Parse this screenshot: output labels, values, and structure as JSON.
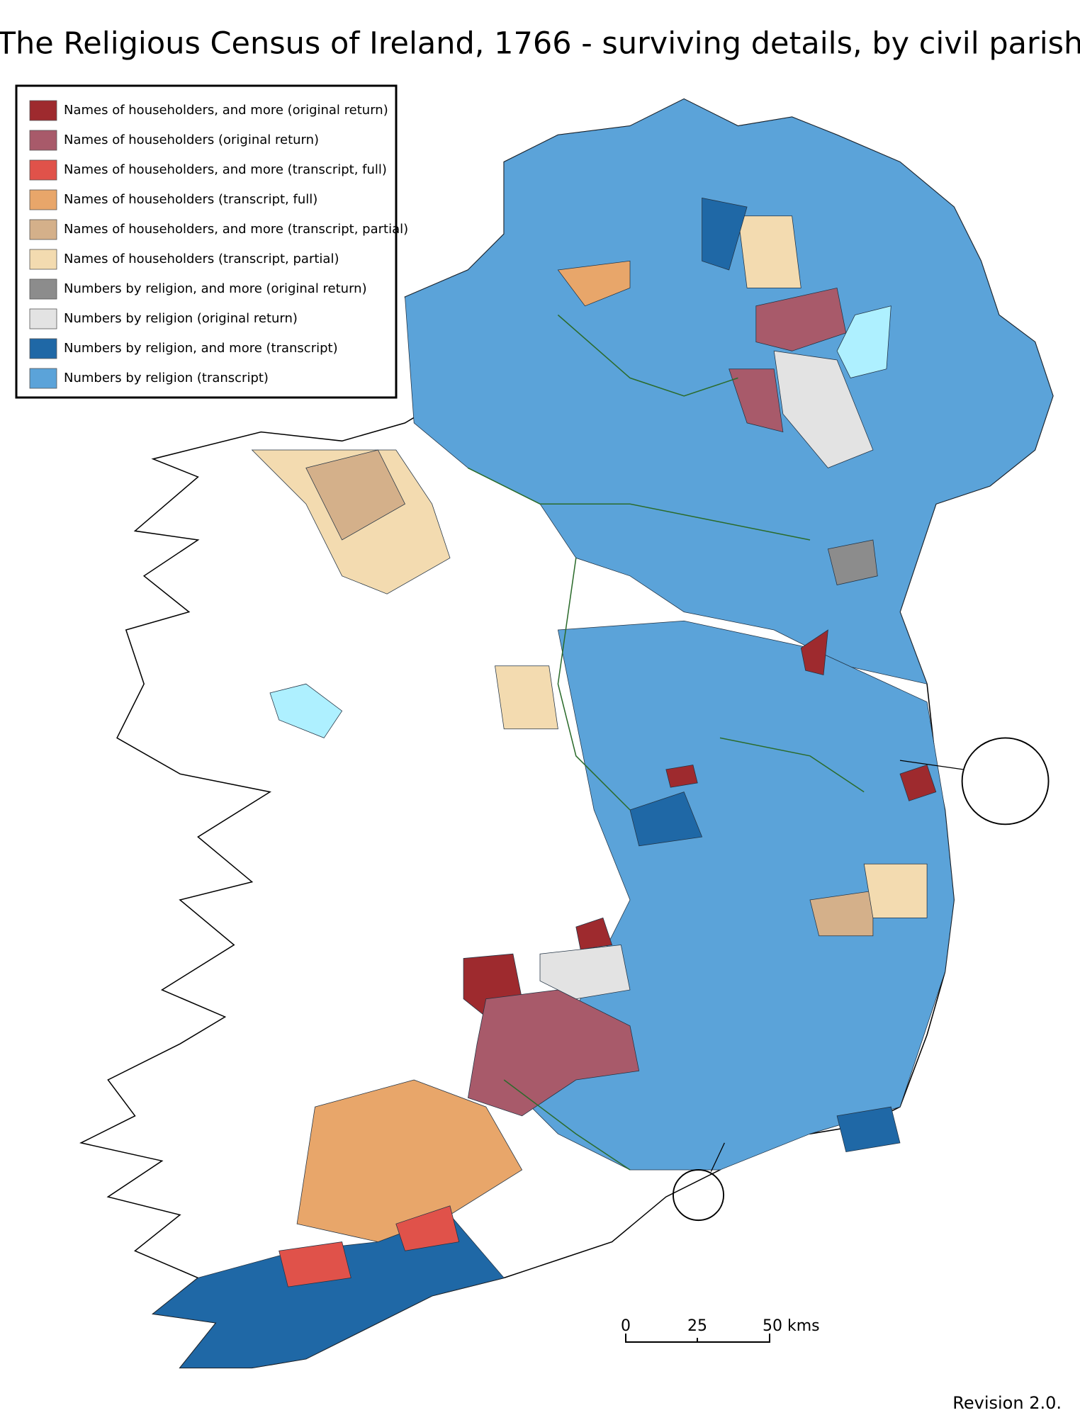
{
  "header": {
    "title": "The Religious Census of Ireland, 1766 - surviving details, by civil parish"
  },
  "legend": {
    "items": [
      {
        "label": "Names of householders, and more (original return)",
        "color": "#9e2a2e"
      },
      {
        "label": "Names of householders (original return)",
        "color": "#a85a6a"
      },
      {
        "label": "Names of householders, and more (transcript, full)",
        "color": "#e0524a"
      },
      {
        "label": "Names of householders (transcript, full)",
        "color": "#e8a66a"
      },
      {
        "label": "Names of householders, and more (transcript, partial)",
        "color": "#d4b08a"
      },
      {
        "label": "Names of householders (transcript, partial)",
        "color": "#f3dbb0"
      },
      {
        "label": "Numbers by religion, and more (original return)",
        "color": "#8c8c8c"
      },
      {
        "label": "Numbers by religion (original return)",
        "color": "#e3e3e3"
      },
      {
        "label": "Numbers by religion, and more (transcript)",
        "color": "#1f68a6"
      },
      {
        "label": "Numbers by religion (transcript)",
        "color": "#5ba3d9"
      }
    ]
  },
  "scale_bar": {
    "labels": [
      "0",
      "25",
      "50 kms"
    ]
  },
  "footer": {
    "revision": "Revision 2.0."
  }
}
